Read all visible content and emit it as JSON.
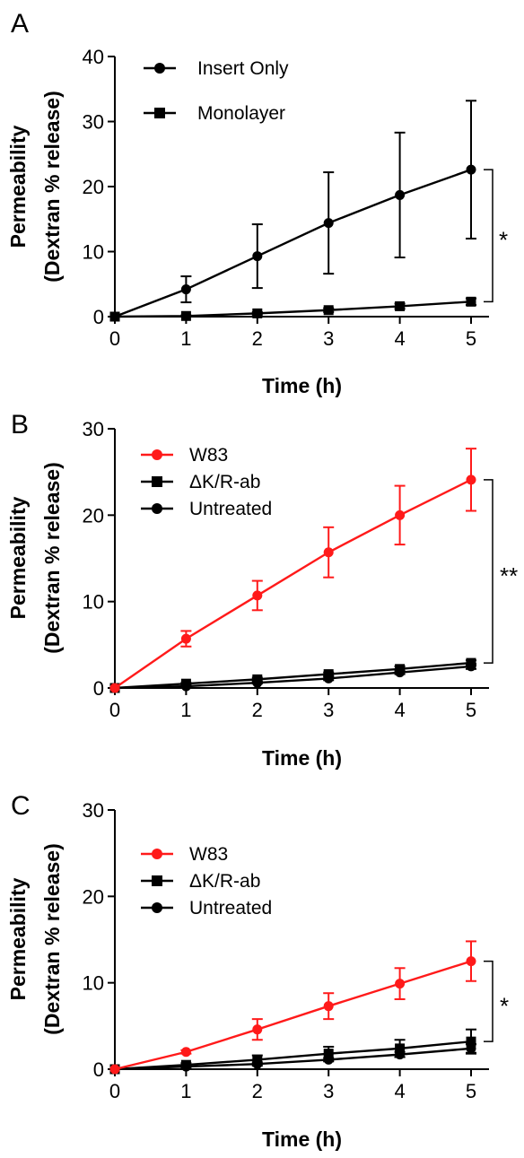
{
  "chart_data": [
    {
      "panel": "A",
      "type": "line",
      "ylabel_lines": [
        "Permeability",
        "(Dextran % release)"
      ],
      "xlabel": "Time (h)",
      "x": [
        0,
        1,
        2,
        3,
        4,
        5
      ],
      "xlim": [
        0,
        5
      ],
      "ylim": [
        0,
        40
      ],
      "yticks": [
        0,
        10,
        20,
        30,
        40
      ],
      "legend_position": "top-left",
      "series": [
        {
          "name": "Insert Only",
          "color": "#000000",
          "marker": "circle",
          "values": [
            0,
            4.2,
            9.3,
            14.4,
            18.7,
            22.6
          ],
          "errors": [
            0,
            2.0,
            4.9,
            7.8,
            9.6,
            10.6
          ]
        },
        {
          "name": "Monolayer",
          "color": "#000000",
          "marker": "square",
          "values": [
            0,
            0.1,
            0.5,
            1.0,
            1.6,
            2.3
          ],
          "errors": [
            0,
            0.1,
            0.2,
            0.3,
            0.4,
            0.5
          ]
        }
      ],
      "significance": "*"
    },
    {
      "panel": "B",
      "type": "line",
      "ylabel_lines": [
        "Permeability",
        "(Dextran % release)"
      ],
      "xlabel": "Time (h)",
      "x": [
        0,
        1,
        2,
        3,
        4,
        5
      ],
      "xlim": [
        0,
        5
      ],
      "ylim": [
        0,
        30
      ],
      "yticks": [
        0,
        10,
        20,
        30
      ],
      "legend_position": "top-left",
      "series": [
        {
          "name": "W83",
          "color": "#ff1a1a",
          "marker": "circle",
          "values": [
            0,
            5.7,
            10.7,
            15.7,
            20.0,
            24.1
          ],
          "errors": [
            0,
            0.9,
            1.7,
            2.9,
            3.4,
            3.6
          ]
        },
        {
          "name": "ΔK/R-ab",
          "color": "#000000",
          "marker": "square",
          "values": [
            0,
            0.5,
            1.0,
            1.6,
            2.2,
            2.9
          ],
          "errors": [
            0,
            0.1,
            0.2,
            0.2,
            0.3,
            0.3
          ]
        },
        {
          "name": "Untreated",
          "color": "#000000",
          "marker": "circle",
          "values": [
            0,
            0.2,
            0.6,
            1.1,
            1.8,
            2.5
          ],
          "errors": [
            0,
            0.1,
            0.1,
            0.2,
            0.2,
            0.3
          ]
        }
      ],
      "significance": "**"
    },
    {
      "panel": "C",
      "type": "line",
      "ylabel_lines": [
        "Permeability",
        "(Dextran % release)"
      ],
      "xlabel": "Time (h)",
      "x": [
        0,
        1,
        2,
        3,
        4,
        5
      ],
      "xlim": [
        0,
        5
      ],
      "ylim": [
        0,
        30
      ],
      "yticks": [
        0,
        10,
        20,
        30
      ],
      "legend_position": "top-left",
      "series": [
        {
          "name": "W83",
          "color": "#ff1a1a",
          "marker": "circle",
          "values": [
            0,
            2.0,
            4.6,
            7.3,
            9.9,
            12.5
          ],
          "errors": [
            0,
            0.2,
            1.2,
            1.5,
            1.8,
            2.3
          ]
        },
        {
          "name": "ΔK/R-ab",
          "color": "#000000",
          "marker": "square",
          "values": [
            0,
            0.5,
            1.1,
            1.8,
            2.4,
            3.2
          ],
          "errors": [
            0,
            0.2,
            0.5,
            0.8,
            1.0,
            1.4
          ]
        },
        {
          "name": "Untreated",
          "color": "#000000",
          "marker": "circle",
          "values": [
            0,
            0.3,
            0.6,
            1.1,
            1.7,
            2.4
          ],
          "errors": [
            0,
            0.1,
            0.2,
            0.2,
            0.3,
            0.5
          ]
        }
      ],
      "significance": "*"
    }
  ]
}
